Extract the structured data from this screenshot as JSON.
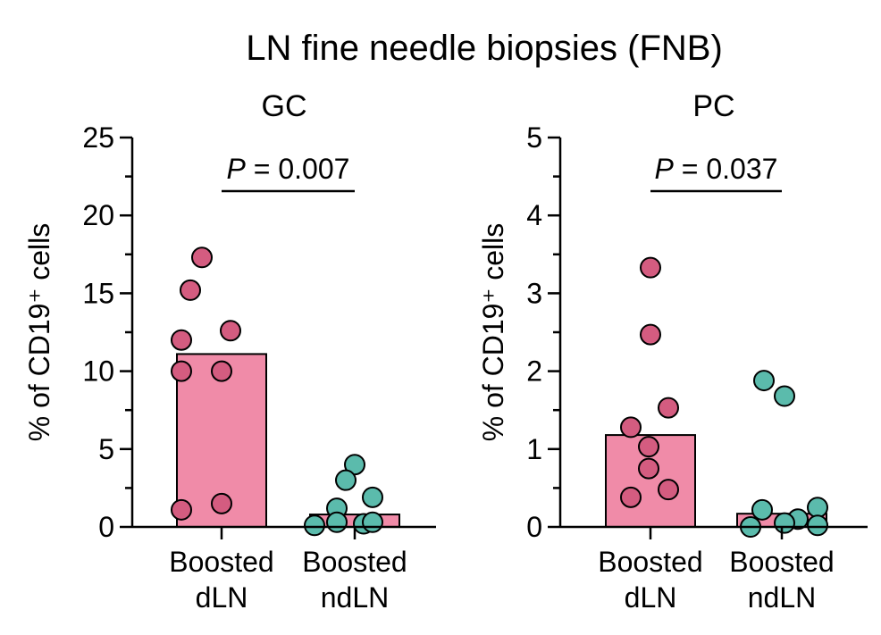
{
  "figure_title": "LN fine needle biopsies (FNB)",
  "colors": {
    "dLN_fill": "#F08BA8",
    "dLN_dot": "#D45C80",
    "ndLN_fill": "#F08BA8",
    "ndLN_dot": "#5BBBAC",
    "stroke": "#000000"
  },
  "chart_data": [
    {
      "type": "bar",
      "title": "GC",
      "ylabel": "% of CD19⁺ cells",
      "ylim": [
        0,
        25
      ],
      "yticks": [
        0,
        5,
        10,
        15,
        20,
        25
      ],
      "grid": false,
      "categories": [
        "Boosted dLN",
        "Boosted ndLN"
      ],
      "category_lines": [
        [
          "Boosted",
          "dLN"
        ],
        [
          "Boosted",
          "ndLN"
        ]
      ],
      "bar_values": [
        11.1,
        0.8
      ],
      "points": [
        [
          17.3,
          15.2,
          12.0,
          12.6,
          10.0,
          10.0,
          1.1,
          1.5
        ],
        [
          4.0,
          3.0,
          1.9,
          1.2,
          0.2,
          0.3,
          0.3,
          0.1
        ]
      ],
      "annotation": {
        "prefix": "P",
        "rest": " = 0.007",
        "between": [
          0,
          1
        ]
      }
    },
    {
      "type": "bar",
      "title": "PC",
      "ylabel": "% of CD19⁺ cells",
      "ylim": [
        0,
        5
      ],
      "yticks": [
        0,
        1,
        2,
        3,
        4,
        5
      ],
      "grid": false,
      "categories": [
        "Boosted dLN",
        "Boosted ndLN"
      ],
      "category_lines": [
        [
          "Boosted",
          "dLN"
        ],
        [
          "Boosted",
          "ndLN"
        ]
      ],
      "bar_values": [
        1.18,
        0.17
      ],
      "points": [
        [
          3.33,
          2.47,
          1.53,
          1.28,
          1.03,
          0.75,
          0.48,
          0.38
        ],
        [
          1.88,
          1.68,
          0.25,
          0.22,
          0.1,
          0.05,
          0.02,
          0.0
        ]
      ],
      "annotation": {
        "prefix": "P",
        "rest": " = 0.037",
        "between": [
          0,
          1
        ]
      }
    }
  ]
}
